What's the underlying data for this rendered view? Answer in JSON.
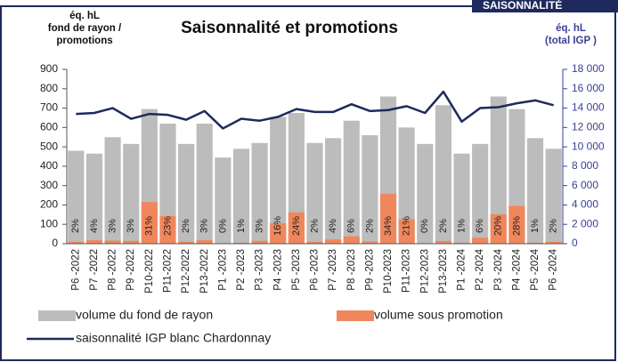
{
  "header": {
    "tab": "SAISONNALITÉ"
  },
  "chart_data": {
    "type": "bar_line",
    "title": "Saisonnalité et promotions",
    "y_label": [
      "éq. hL",
      "fond de rayon /",
      "promotions"
    ],
    "y2_label": [
      "éq. hL",
      "(total IGP )"
    ],
    "categories": [
      "P6 -2022",
      "P7 -2022",
      "P8 -2022",
      "P9 -2022",
      "P10-2022",
      "P11-2022",
      "P12-2022",
      "P13-2022",
      "P1 -2023",
      "P2 -2023",
      "P3 -2023",
      "P4 -2023",
      "P5 -2023",
      "P6 -2023",
      "P7 -2023",
      "P8 -2023",
      "P9 -2023",
      "P10-2023",
      "P11-2023",
      "P12-2023",
      "P13-2023",
      "P1 -2024",
      "P2 -2024",
      "P3 -2024",
      "P4 -2024",
      "P5 -2024",
      "P6 -2024"
    ],
    "series": [
      {
        "name": "volume du fond de rayon",
        "color": "#bcbcbc",
        "values": [
          480,
          465,
          550,
          515,
          695,
          620,
          515,
          620,
          445,
          490,
          520,
          655,
          675,
          520,
          545,
          635,
          560,
          760,
          600,
          515,
          715,
          465,
          515,
          760,
          695,
          545,
          490
        ]
      },
      {
        "name": "volume sous promotion",
        "color": "#f0875c",
        "values": [
          10,
          18,
          16,
          15,
          215,
          143,
          10,
          18,
          0,
          5,
          15,
          105,
          162,
          10,
          22,
          38,
          11,
          258,
          126,
          0,
          14,
          5,
          31,
          152,
          195,
          5,
          10
        ],
        "share_labels": [
          "2%",
          "4%",
          "3%",
          "3%",
          "31%",
          "23%",
          "2%",
          "3%",
          "0%",
          "1%",
          "3%",
          "16%",
          "24%",
          "2%",
          "4%",
          "6%",
          "2%",
          "34%",
          "21%",
          "0%",
          "2%",
          "1%",
          "6%",
          "20%",
          "28%",
          "1%",
          "2%"
        ]
      },
      {
        "name": "saisonnalité IGP blanc Chardonnay",
        "color": "#1e2a5e",
        "axis": "y2",
        "values": [
          13400,
          13500,
          14000,
          12900,
          13400,
          13300,
          12800,
          13700,
          11900,
          12900,
          12700,
          13100,
          13900,
          13600,
          13600,
          14400,
          13700,
          13800,
          14200,
          13500,
          15700,
          12600,
          14000,
          14100,
          14500,
          14800,
          14300
        ]
      }
    ],
    "ylim": [
      0,
      900
    ],
    "yticks": [
      0,
      100,
      200,
      300,
      400,
      500,
      600,
      700,
      800,
      900
    ],
    "y2lim": [
      0,
      18000
    ],
    "y2ticks": [
      0,
      {
        "value": 2000,
        "label": "2 000"
      },
      {
        "value": 4000,
        "label": "4 000"
      },
      {
        "value": 6000,
        "label": "6 000"
      },
      {
        "value": 8000,
        "label": "8 000"
      },
      {
        "value": 10000,
        "label": "10 000"
      },
      {
        "value": 12000,
        "label": "12 000"
      },
      {
        "value": 14000,
        "label": "14 000"
      },
      {
        "value": 16000,
        "label": "16 000"
      },
      {
        "value": 18000,
        "label": "18 000"
      }
    ]
  }
}
